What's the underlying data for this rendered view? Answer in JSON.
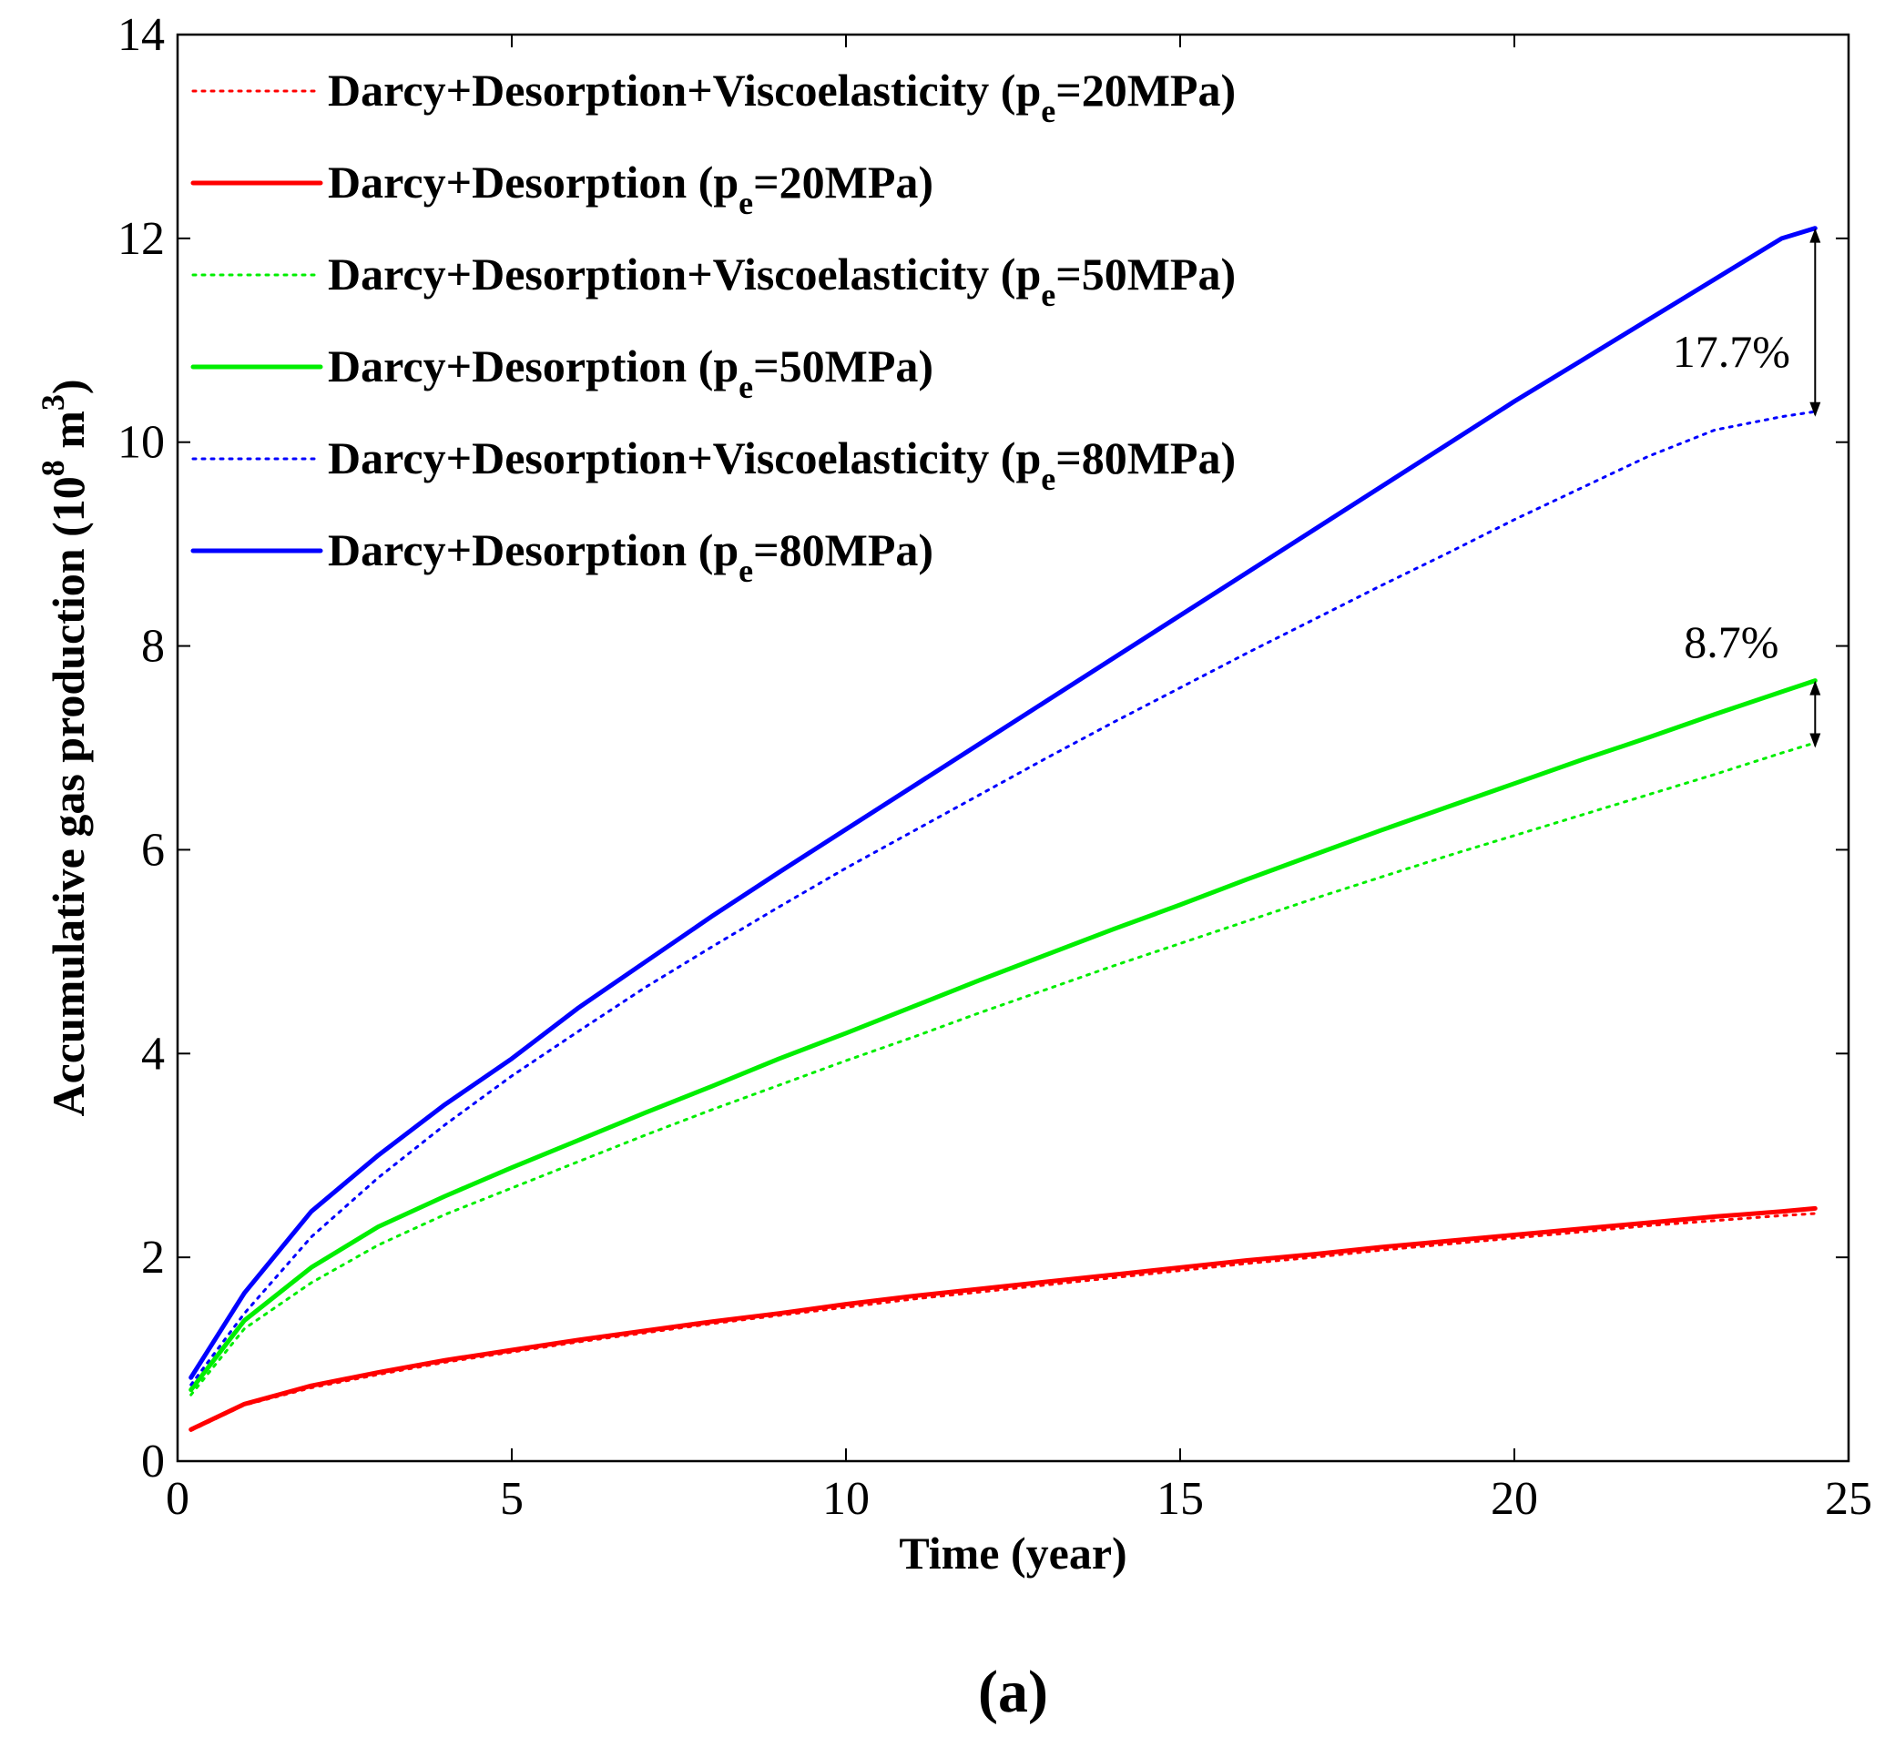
{
  "chart_data": {
    "type": "line",
    "title": "",
    "xlabel": "Time (year)",
    "ylabel_main": "Accumulative gas production (10",
    "ylabel_sup1": "8",
    "ylabel_mid": " m",
    "ylabel_sup2": "3",
    "ylabel_end": ")",
    "xlim": [
      0,
      25
    ],
    "ylim": [
      0,
      14
    ],
    "xticks": [
      0,
      5,
      10,
      15,
      20,
      25
    ],
    "yticks": [
      0,
      2,
      4,
      6,
      8,
      10,
      12,
      14
    ],
    "grid": false,
    "legend_position": "top-left",
    "x": [
      0.2,
      1,
      2,
      3,
      4,
      5,
      6,
      7,
      8,
      9,
      10,
      11,
      12,
      13,
      14,
      15,
      16,
      17,
      18,
      19,
      20,
      21,
      22,
      23,
      24,
      24.5
    ],
    "series": [
      {
        "name": "Darcy+Desorption+Viscoelasticity (p",
        "sub": "e",
        "suffix": "=20MPa)",
        "color": "#ff0000",
        "dash": "dotted",
        "values": [
          0.3,
          0.55,
          0.72,
          0.85,
          0.97,
          1.07,
          1.17,
          1.26,
          1.35,
          1.43,
          1.51,
          1.59,
          1.66,
          1.73,
          1.8,
          1.87,
          1.94,
          2.0,
          2.07,
          2.13,
          2.19,
          2.25,
          2.31,
          2.36,
          2.41,
          2.43
        ]
      },
      {
        "name": "Darcy+Desorption (p",
        "sub": "e",
        "suffix": "=20MPa)",
        "color": "#ff0000",
        "dash": "solid",
        "values": [
          0.31,
          0.56,
          0.74,
          0.87,
          0.99,
          1.09,
          1.19,
          1.28,
          1.37,
          1.45,
          1.54,
          1.62,
          1.69,
          1.76,
          1.83,
          1.9,
          1.97,
          2.03,
          2.1,
          2.16,
          2.22,
          2.28,
          2.34,
          2.4,
          2.45,
          2.48
        ]
      },
      {
        "name": "Darcy+Desorption+Viscoelasticity (p",
        "sub": "e",
        "suffix": "=50MPa)",
        "color": "#00ee00",
        "dash": "dotted",
        "values": [
          0.65,
          1.3,
          1.75,
          2.12,
          2.42,
          2.68,
          2.94,
          3.2,
          3.45,
          3.69,
          3.93,
          4.16,
          4.4,
          4.63,
          4.86,
          5.08,
          5.3,
          5.52,
          5.73,
          5.94,
          6.14,
          6.34,
          6.54,
          6.74,
          6.95,
          7.05
        ]
      },
      {
        "name": "Darcy+Desorption (p",
        "sub": "e",
        "suffix": "=50MPa)",
        "color": "#00ee00",
        "dash": "solid",
        "values": [
          0.7,
          1.38,
          1.9,
          2.3,
          2.6,
          2.88,
          3.15,
          3.42,
          3.68,
          3.95,
          4.2,
          4.46,
          4.72,
          4.97,
          5.22,
          5.46,
          5.71,
          5.95,
          6.19,
          6.42,
          6.65,
          6.88,
          7.1,
          7.33,
          7.55,
          7.66
        ]
      },
      {
        "name": "Darcy+Desorption+Viscoelasticity (p",
        "sub": "e",
        "suffix": "=80MPa)",
        "color": "#0000ff",
        "dash": "dotted",
        "values": [
          0.75,
          1.45,
          2.2,
          2.78,
          3.3,
          3.78,
          4.22,
          4.65,
          5.05,
          5.44,
          5.82,
          6.18,
          6.54,
          6.9,
          7.25,
          7.59,
          7.93,
          8.26,
          8.59,
          8.91,
          9.24,
          9.55,
          9.86,
          10.12,
          10.25,
          10.3
        ]
      },
      {
        "name": "Darcy+Desorption (p",
        "sub": "e",
        "suffix": "=80MPa)",
        "color": "#0000ff",
        "dash": "solid",
        "values": [
          0.82,
          1.65,
          2.45,
          3.0,
          3.5,
          3.95,
          4.45,
          4.9,
          5.35,
          5.78,
          6.2,
          6.62,
          7.04,
          7.46,
          7.88,
          8.3,
          8.72,
          9.14,
          9.56,
          9.98,
          10.4,
          10.8,
          11.2,
          11.6,
          12.0,
          12.1
        ]
      }
    ],
    "annotations": [
      {
        "text": "17.7%",
        "x": 24.5,
        "y_top": 12.1,
        "y_bottom": 10.25,
        "label_y": 10.9
      },
      {
        "text": "8.7%",
        "x": 24.5,
        "y_top": 7.66,
        "y_bottom": 7.0,
        "label_y": 8.05
      }
    ],
    "panel_label": "(a)"
  }
}
